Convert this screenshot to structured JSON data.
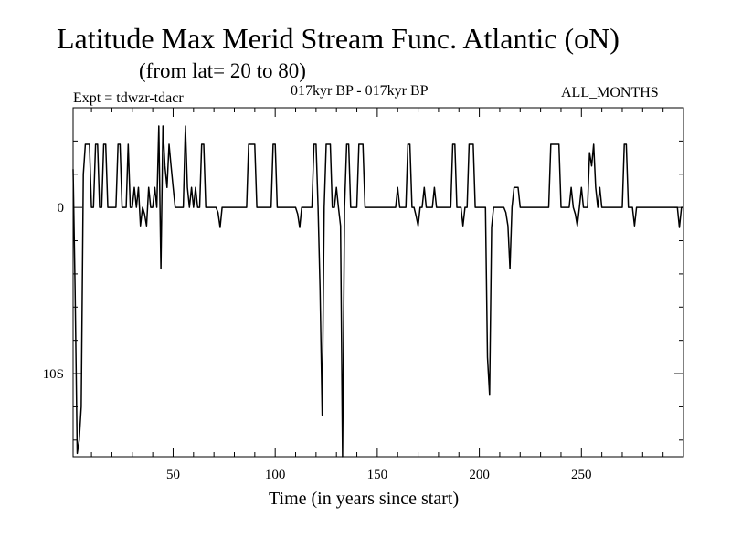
{
  "header": {
    "title": "Latitude Max Merid Stream Func. Atlantic (oN)",
    "subtitle": "(from lat= 20 to 80)",
    "expt": "Expt = tdwzr-tdacr",
    "period": "017kyr BP - 017kyr BP",
    "months": "ALL_MONTHS"
  },
  "chart_data": {
    "type": "line",
    "title": "Latitude Max Merid Stream Func. Atlantic (oN)",
    "xlabel": "Time (in years since start)",
    "ylabel": "",
    "xlim": [
      1,
      300
    ],
    "ylim": [
      -15,
      6
    ],
    "x_ticks": [
      50,
      100,
      150,
      200,
      250
    ],
    "x_tick_labels": [
      "50",
      "100",
      "150",
      "200",
      "250"
    ],
    "y_ticks": [
      0,
      -10
    ],
    "y_tick_labels": [
      "0",
      "10S"
    ],
    "grid": false,
    "series": [
      {
        "color": "#000000",
        "points": [
          [
            1,
            2.3
          ],
          [
            2,
            -5
          ],
          [
            3,
            -14.8
          ],
          [
            4,
            -14
          ],
          [
            5,
            -12
          ],
          [
            6,
            2
          ],
          [
            7,
            3.8
          ],
          [
            8,
            3.8
          ],
          [
            9,
            3.8
          ],
          [
            10,
            0
          ],
          [
            11,
            0
          ],
          [
            12,
            3.8
          ],
          [
            13,
            3.8
          ],
          [
            14,
            0
          ],
          [
            15,
            0
          ],
          [
            16,
            3.8
          ],
          [
            17,
            3.8
          ],
          [
            18,
            0
          ],
          [
            19,
            0
          ],
          [
            20,
            0
          ],
          [
            21,
            0
          ],
          [
            22,
            0
          ],
          [
            23,
            3.8
          ],
          [
            24,
            3.8
          ],
          [
            25,
            0
          ],
          [
            26,
            0
          ],
          [
            27,
            0
          ],
          [
            28,
            3.8
          ],
          [
            29,
            0
          ],
          [
            30,
            0
          ],
          [
            31,
            1.2
          ],
          [
            32,
            0
          ],
          [
            33,
            1.2
          ],
          [
            34,
            -1.1
          ],
          [
            35,
            0
          ],
          [
            36,
            -0.4
          ],
          [
            37,
            -1.1
          ],
          [
            38,
            1.2
          ],
          [
            39,
            0
          ],
          [
            40,
            0
          ],
          [
            41,
            1.2
          ],
          [
            42,
            0
          ],
          [
            43,
            4.9
          ],
          [
            44,
            -3.7
          ],
          [
            45,
            4.9
          ],
          [
            46,
            2.5
          ],
          [
            47,
            1.2
          ],
          [
            48,
            3.8
          ],
          [
            49,
            2.5
          ],
          [
            50,
            1.2
          ],
          [
            51,
            0
          ],
          [
            52,
            0
          ],
          [
            53,
            0
          ],
          [
            54,
            0
          ],
          [
            55,
            0
          ],
          [
            56,
            4.9
          ],
          [
            57,
            1.2
          ],
          [
            58,
            0
          ],
          [
            59,
            1.2
          ],
          [
            60,
            0
          ],
          [
            61,
            1.2
          ],
          [
            62,
            0
          ],
          [
            63,
            0
          ],
          [
            64,
            3.8
          ],
          [
            65,
            3.8
          ],
          [
            66,
            0
          ],
          [
            67,
            0
          ],
          [
            68,
            0
          ],
          [
            69,
            0
          ],
          [
            70,
            0
          ],
          [
            71,
            0
          ],
          [
            72,
            -0.3
          ],
          [
            73,
            -1.2
          ],
          [
            74,
            0
          ],
          [
            75,
            0
          ],
          [
            76,
            0
          ],
          [
            77,
            0
          ],
          [
            78,
            0
          ],
          [
            79,
            0
          ],
          [
            80,
            0
          ],
          [
            81,
            0
          ],
          [
            82,
            0
          ],
          [
            83,
            0
          ],
          [
            84,
            0
          ],
          [
            85,
            0
          ],
          [
            86,
            0
          ],
          [
            87,
            3.8
          ],
          [
            88,
            3.8
          ],
          [
            89,
            3.8
          ],
          [
            90,
            3.8
          ],
          [
            91,
            0
          ],
          [
            92,
            0
          ],
          [
            93,
            0
          ],
          [
            94,
            0
          ],
          [
            95,
            0
          ],
          [
            96,
            0
          ],
          [
            97,
            0
          ],
          [
            98,
            0
          ],
          [
            99,
            3.8
          ],
          [
            100,
            3.8
          ],
          [
            101,
            0
          ],
          [
            102,
            0
          ],
          [
            103,
            0
          ],
          [
            104,
            0
          ],
          [
            105,
            0
          ],
          [
            106,
            0
          ],
          [
            107,
            0
          ],
          [
            108,
            0
          ],
          [
            109,
            0
          ],
          [
            110,
            0
          ],
          [
            111,
            -0.4
          ],
          [
            112,
            -1.2
          ],
          [
            113,
            0
          ],
          [
            114,
            0
          ],
          [
            115,
            0
          ],
          [
            116,
            0
          ],
          [
            117,
            0
          ],
          [
            118,
            0
          ],
          [
            119,
            3.8
          ],
          [
            120,
            3.8
          ],
          [
            121,
            0
          ],
          [
            122,
            -5
          ],
          [
            123,
            -12.5
          ],
          [
            124,
            0
          ],
          [
            125,
            3.8
          ],
          [
            126,
            3.8
          ],
          [
            127,
            3.8
          ],
          [
            128,
            0
          ],
          [
            129,
            0
          ],
          [
            130,
            1.2
          ],
          [
            131,
            0
          ],
          [
            132,
            -1.1
          ],
          [
            133,
            -15
          ],
          [
            134,
            0
          ],
          [
            135,
            3.8
          ],
          [
            136,
            3.8
          ],
          [
            137,
            0
          ],
          [
            138,
            0
          ],
          [
            139,
            0
          ],
          [
            140,
            0
          ],
          [
            141,
            3.8
          ],
          [
            142,
            3.8
          ],
          [
            143,
            3.8
          ],
          [
            144,
            0
          ],
          [
            145,
            0
          ],
          [
            146,
            0
          ],
          [
            147,
            0
          ],
          [
            148,
            0
          ],
          [
            149,
            0
          ],
          [
            150,
            0
          ],
          [
            151,
            0
          ],
          [
            152,
            0
          ],
          [
            153,
            0
          ],
          [
            154,
            0
          ],
          [
            155,
            0
          ],
          [
            156,
            0
          ],
          [
            157,
            0
          ],
          [
            158,
            0
          ],
          [
            159,
            0
          ],
          [
            160,
            1.2
          ],
          [
            161,
            0
          ],
          [
            162,
            0
          ],
          [
            163,
            0
          ],
          [
            164,
            0
          ],
          [
            165,
            3.8
          ],
          [
            166,
            3.8
          ],
          [
            167,
            0
          ],
          [
            168,
            0
          ],
          [
            169,
            -0.5
          ],
          [
            170,
            -1.1
          ],
          [
            171,
            0
          ],
          [
            172,
            0
          ],
          [
            173,
            1.2
          ],
          [
            174,
            0
          ],
          [
            175,
            0
          ],
          [
            176,
            0
          ],
          [
            177,
            0
          ],
          [
            178,
            1.2
          ],
          [
            179,
            0
          ],
          [
            180,
            0
          ],
          [
            181,
            0
          ],
          [
            182,
            0
          ],
          [
            183,
            0
          ],
          [
            184,
            0
          ],
          [
            185,
            0
          ],
          [
            186,
            0
          ],
          [
            187,
            3.8
          ],
          [
            188,
            3.8
          ],
          [
            189,
            0
          ],
          [
            190,
            0
          ],
          [
            191,
            0
          ],
          [
            192,
            -1.1
          ],
          [
            193,
            0
          ],
          [
            194,
            0
          ],
          [
            195,
            3.8
          ],
          [
            196,
            3.8
          ],
          [
            197,
            3.8
          ],
          [
            198,
            0
          ],
          [
            199,
            0
          ],
          [
            200,
            0
          ],
          [
            201,
            0
          ],
          [
            202,
            0
          ],
          [
            203,
            0
          ],
          [
            204,
            -9
          ],
          [
            205,
            -11.3
          ],
          [
            206,
            -1.2
          ],
          [
            207,
            0
          ],
          [
            208,
            0
          ],
          [
            209,
            0
          ],
          [
            210,
            0
          ],
          [
            211,
            0
          ],
          [
            212,
            0
          ],
          [
            213,
            -0.3
          ],
          [
            214,
            -1.1
          ],
          [
            215,
            -3.7
          ],
          [
            216,
            0
          ],
          [
            217,
            1.2
          ],
          [
            218,
            1.2
          ],
          [
            219,
            1.2
          ],
          [
            220,
            0
          ],
          [
            221,
            0
          ],
          [
            222,
            0
          ],
          [
            223,
            0
          ],
          [
            224,
            0
          ],
          [
            225,
            0
          ],
          [
            226,
            0
          ],
          [
            227,
            0
          ],
          [
            228,
            0
          ],
          [
            229,
            0
          ],
          [
            230,
            0
          ],
          [
            231,
            0
          ],
          [
            232,
            0
          ],
          [
            233,
            0
          ],
          [
            234,
            0
          ],
          [
            235,
            3.8
          ],
          [
            236,
            3.8
          ],
          [
            237,
            3.8
          ],
          [
            238,
            3.8
          ],
          [
            239,
            3.8
          ],
          [
            240,
            0
          ],
          [
            241,
            0
          ],
          [
            242,
            0
          ],
          [
            243,
            0
          ],
          [
            244,
            0
          ],
          [
            245,
            1.2
          ],
          [
            246,
            0
          ],
          [
            247,
            -0.4
          ],
          [
            248,
            -1.1
          ],
          [
            249,
            0
          ],
          [
            250,
            1.2
          ],
          [
            251,
            0
          ],
          [
            252,
            0
          ],
          [
            253,
            0
          ],
          [
            254,
            3.3
          ],
          [
            255,
            2.5
          ],
          [
            256,
            3.8
          ],
          [
            257,
            1.2
          ],
          [
            258,
            0
          ],
          [
            259,
            1.2
          ],
          [
            260,
            0
          ],
          [
            261,
            0
          ],
          [
            262,
            0
          ],
          [
            263,
            0
          ],
          [
            264,
            0
          ],
          [
            265,
            0
          ],
          [
            266,
            0
          ],
          [
            267,
            0
          ],
          [
            268,
            0
          ],
          [
            269,
            0
          ],
          [
            270,
            0
          ],
          [
            271,
            3.8
          ],
          [
            272,
            3.8
          ],
          [
            273,
            0
          ],
          [
            274,
            0
          ],
          [
            275,
            0
          ],
          [
            276,
            -1.1
          ],
          [
            277,
            0
          ],
          [
            278,
            0
          ],
          [
            279,
            0
          ],
          [
            280,
            0
          ],
          [
            281,
            0
          ],
          [
            282,
            0
          ],
          [
            283,
            0
          ],
          [
            284,
            0
          ],
          [
            285,
            0
          ],
          [
            286,
            0
          ],
          [
            287,
            0
          ],
          [
            288,
            0
          ],
          [
            289,
            0
          ],
          [
            290,
            0
          ],
          [
            291,
            0
          ],
          [
            292,
            0
          ],
          [
            293,
            0
          ],
          [
            294,
            0
          ],
          [
            295,
            0
          ],
          [
            296,
            0
          ],
          [
            297,
            0
          ],
          [
            298,
            -1.2
          ],
          [
            299,
            0
          ],
          [
            300,
            0
          ]
        ]
      }
    ]
  }
}
